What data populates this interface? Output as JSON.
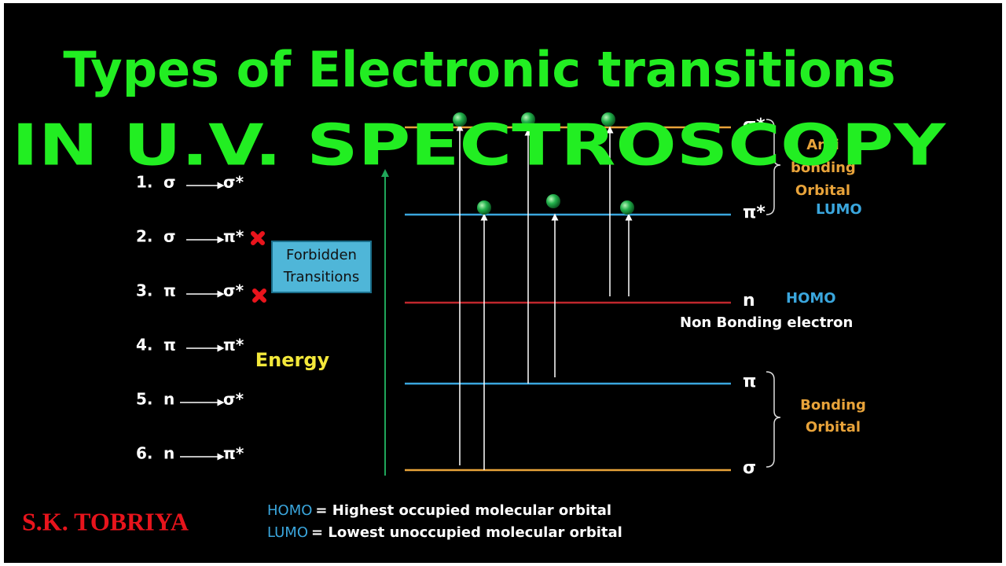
{
  "title": "Types of Electronic transitions",
  "subtitle": "IN U.V. SPECTROSCOPY",
  "transitions": [
    {
      "number": "1.",
      "from": "σ",
      "to": "σ*"
    },
    {
      "number": "2.",
      "from": "σ",
      "to": "π*"
    },
    {
      "number": "3.",
      "from": "π",
      "to": "σ*"
    },
    {
      "number": "4.",
      "from": "π",
      "to": "π*"
    },
    {
      "number": "5.",
      "from": "n",
      "to": "σ*"
    },
    {
      "number": "6.",
      "from": "n",
      "to": "π*"
    }
  ],
  "forbidden_label": "Forbidden Transitions",
  "energy_label": "Energy",
  "levels": [
    {
      "symbol": "σ*"
    },
    {
      "symbol": "π*"
    },
    {
      "symbol": "n"
    },
    {
      "symbol": "π"
    },
    {
      "symbol": "σ"
    }
  ],
  "annotations": {
    "antibonding": "Anti bonding Orbital",
    "lumo": "LUMO",
    "homo": "HOMO",
    "nonbonding": "Non Bonding electron",
    "bonding": "Bonding Orbital"
  },
  "author": "S.K. TOBRIYA",
  "legend": [
    {
      "term": "HOMO",
      "definition": "= Highest occupied molecular orbital"
    },
    {
      "term": "LUMO",
      "definition": "= Lowest unoccupied molecular orbital"
    }
  ]
}
